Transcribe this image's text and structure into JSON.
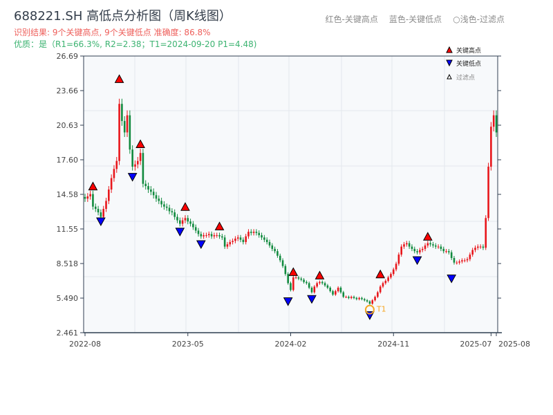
{
  "title": "688221.SH 高低点分析图（周K线图）",
  "result_text": "识别结果: 9个关键高点, 9个关键低点   准确度: 86.8%",
  "quality_text": "优质：是（R1=66.3%, R2=2.38；T1=2024-09-20 P1=4.48)",
  "top_legend": [
    "红色-关键高点",
    "蓝色-关键低点",
    "○浅色-过滤点"
  ],
  "colors": {
    "up": "#e8161b",
    "down": "#118a3e",
    "high_marker": "#ff0000",
    "low_marker": "#0000ff",
    "t1": "#f5a623",
    "axis": "#2f3e50"
  },
  "chart_data": {
    "type": "candlestick",
    "ylim": [
      2.461,
      26.69
    ],
    "y_ticks": [
      "26.69",
      "23.66",
      "20.63",
      "17.60",
      "14.58",
      "11.55",
      "8.518",
      "5.490",
      "2.461"
    ],
    "x_tick_labels": [
      {
        "label": "2022-08",
        "week": 0
      },
      {
        "label": "2023-05",
        "week": 39
      },
      {
        "label": "2024-02",
        "week": 78
      },
      {
        "label": "2024-11",
        "week": 117
      },
      {
        "label": "2025-07",
        "week": 154
      },
      {
        "label": "2025-08",
        "week": 156
      }
    ],
    "closes": [
      14.2,
      14.4,
      14.6,
      13.5,
      13.3,
      13.0,
      12.6,
      13.3,
      14.0,
      15.0,
      16.0,
      16.8,
      17.5,
      22.5,
      21.0,
      20.0,
      21.5,
      18.5,
      17.0,
      17.2,
      17.5,
      18.2,
      15.5,
      15.3,
      15.0,
      14.8,
      14.5,
      14.2,
      14.0,
      13.7,
      13.5,
      13.4,
      13.1,
      13.0,
      12.6,
      12.3,
      12.0,
      12.3,
      12.5,
      12.2,
      12.0,
      11.7,
      11.4,
      11.1,
      10.9,
      11.0,
      11.0,
      11.1,
      10.9,
      11.0,
      11.0,
      10.9,
      10.8,
      10.0,
      10.2,
      10.4,
      10.5,
      10.7,
      10.8,
      10.6,
      10.4,
      10.9,
      11.3,
      11.2,
      11.3,
      11.2,
      11.0,
      10.8,
      10.6,
      10.4,
      10.1,
      9.8,
      9.6,
      9.2,
      8.8,
      8.3,
      7.6,
      6.8,
      6.2,
      7.3,
      7.3,
      7.2,
      7.1,
      6.9,
      6.8,
      6.4,
      6.0,
      6.5,
      6.8,
      6.9,
      6.8,
      6.6,
      6.4,
      6.1,
      5.8,
      6.1,
      6.4,
      6.0,
      5.6,
      5.6,
      5.5,
      5.6,
      5.5,
      5.4,
      5.5,
      5.4,
      5.3,
      5.2,
      5.0,
      5.3,
      5.6,
      6.0,
      6.5,
      6.8,
      7.0,
      7.3,
      7.6,
      8.0,
      8.5,
      9.3,
      10.0,
      10.2,
      10.3,
      10.0,
      9.8,
      9.6,
      9.5,
      9.7,
      9.8,
      10.1,
      10.3,
      10.2,
      10.1,
      10.0,
      10.0,
      9.8,
      9.6,
      9.6,
      9.5,
      9.0,
      8.6,
      8.6,
      8.7,
      8.8,
      8.8,
      8.9,
      9.3,
      9.7,
      9.9,
      10.0,
      10.0,
      9.9,
      12.5,
      17.0,
      20.5,
      21.5,
      20.0
    ],
    "key_highs": [
      {
        "week": 3,
        "price": 14.6
      },
      {
        "week": 13,
        "price": 24.0
      },
      {
        "week": 21,
        "price": 18.3
      },
      {
        "week": 38,
        "price": 12.8
      },
      {
        "week": 51,
        "price": 11.1
      },
      {
        "week": 79,
        "price": 7.1
      },
      {
        "week": 89,
        "price": 6.8
      },
      {
        "week": 112,
        "price": 6.9
      },
      {
        "week": 130,
        "price": 10.2
      }
    ],
    "key_lows": [
      {
        "week": 6,
        "price": 12.7
      },
      {
        "week": 18,
        "price": 16.6
      },
      {
        "week": 36,
        "price": 11.8
      },
      {
        "week": 44,
        "price": 10.7
      },
      {
        "week": 77,
        "price": 5.7
      },
      {
        "week": 86,
        "price": 5.9
      },
      {
        "week": 108,
        "price": 4.48
      },
      {
        "week": 126,
        "price": 9.3
      },
      {
        "week": 139,
        "price": 7.7
      }
    ],
    "t1": {
      "label": "T1",
      "week": 108,
      "price": 4.48
    },
    "legend": {
      "placement": "top-right",
      "items": [
        "关键高点",
        "关键低点",
        "过滤点"
      ]
    },
    "grid": true
  }
}
